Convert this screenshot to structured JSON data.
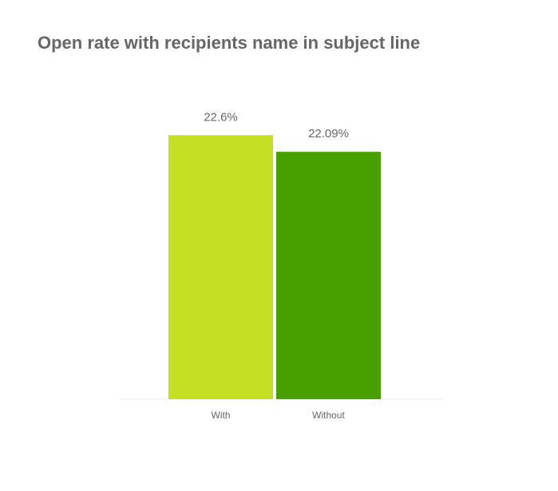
{
  "chart_data": {
    "type": "bar",
    "title": "Open rate with recipients name in subject line",
    "categories": [
      "With",
      "Without"
    ],
    "series": [
      {
        "values": [
          22.6,
          22.09
        ],
        "value_labels": [
          "22.6%",
          "22.09%"
        ],
        "colors": [
          "#c5e022",
          "#48a000"
        ]
      }
    ],
    "ylim": [
      14.5,
      23
    ]
  }
}
